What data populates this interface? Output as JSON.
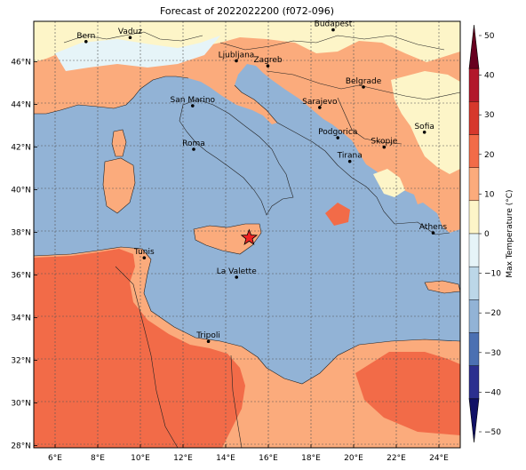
{
  "title": "Forecast of 2022022200 (f072-096)",
  "colors": {
    "sea": "#92b3d6",
    "cool_land": "#e6f4f8",
    "neutral_land": "#fdf5c8",
    "warm_land": "#fbab7c",
    "hot_land": "#f26b48",
    "border": "#222222",
    "grid": "#555555",
    "star": "#ee2222"
  },
  "axes": {
    "lon_ticks": [
      "6°E",
      "8°E",
      "10°E",
      "12°E",
      "14°E",
      "16°E",
      "18°E",
      "20°E",
      "22°E",
      "24°E"
    ],
    "lat_ticks": [
      "46°N",
      "44°N",
      "42°N",
      "40°N",
      "38°N",
      "36°N",
      "34°N",
      "32°N",
      "30°N",
      "28°N"
    ]
  },
  "colorbar": {
    "label": "Max Temperature (°C)",
    "ticks": [
      "50",
      "40",
      "30",
      "20",
      "10",
      "0",
      "−10",
      "−20",
      "−30",
      "−40",
      "−50"
    ],
    "colors": [
      "#67001f",
      "#b2182b",
      "#d6382c",
      "#f26b48",
      "#fbab7c",
      "#fdf5c8",
      "#e6f4f8",
      "#bcd7e8",
      "#92b3d6",
      "#4b70b2",
      "#2b2f8f",
      "#111166"
    ]
  },
  "cities": [
    {
      "name": "Bern",
      "lon": 7.45,
      "lat": 46.95
    },
    {
      "name": "Vaduz",
      "lon": 9.52,
      "lat": 47.14
    },
    {
      "name": "Budapest",
      "lon": 19.04,
      "lat": 47.5
    },
    {
      "name": "Ljubljana",
      "lon": 14.5,
      "lat": 46.05
    },
    {
      "name": "Zagreb",
      "lon": 15.98,
      "lat": 45.81
    },
    {
      "name": "Belgrade",
      "lon": 20.46,
      "lat": 44.82
    },
    {
      "name": "San Marino",
      "lon": 12.45,
      "lat": 43.94
    },
    {
      "name": "Sarajevo",
      "lon": 18.41,
      "lat": 43.86
    },
    {
      "name": "Sofia",
      "lon": 23.32,
      "lat": 42.7
    },
    {
      "name": "Podgorica",
      "lon": 19.26,
      "lat": 42.44
    },
    {
      "name": "Skopje",
      "lon": 21.43,
      "lat": 42.0
    },
    {
      "name": "Roma",
      "lon": 12.5,
      "lat": 41.9
    },
    {
      "name": "Tirana",
      "lon": 19.82,
      "lat": 41.33
    },
    {
      "name": "Athens",
      "lon": 23.73,
      "lat": 37.98
    },
    {
      "name": "Tunis",
      "lon": 10.18,
      "lat": 36.81
    },
    {
      "name": "La Valette",
      "lon": 14.51,
      "lat": 35.9
    },
    {
      "name": "Tripoli",
      "lon": 13.19,
      "lat": 32.89
    }
  ],
  "marker": {
    "name": "star-marker",
    "lon": 15.1,
    "lat": 37.75
  }
}
